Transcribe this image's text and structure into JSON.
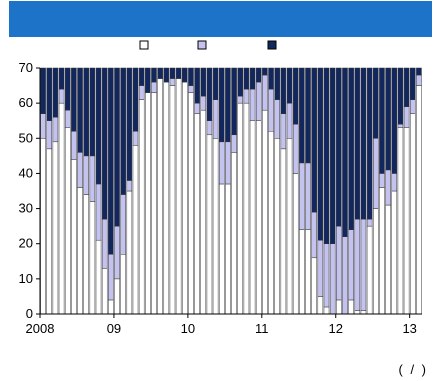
{
  "header": {
    "title": ""
  },
  "colors": {
    "white_series": "#ffffff",
    "light_series": "#c4c2ee",
    "dark_series": "#13275f",
    "title_bar": "#1d73c7"
  },
  "legend": [
    {
      "marker_color": "#ffffff",
      "label": ""
    },
    {
      "marker_color": "#c4c2ee",
      "label": ""
    },
    {
      "marker_color": "#13275f",
      "label": ""
    }
  ],
  "footnote": "( / )",
  "chart_data": {
    "type": "bar",
    "stacked": true,
    "ylim": [
      0,
      70
    ],
    "yticks": [
      0,
      10,
      20,
      30,
      40,
      50,
      60,
      70
    ],
    "xtick_labels": [
      "2008",
      "09",
      "10",
      "11",
      "12",
      "13"
    ],
    "xlabel": "",
    "ylabel": "",
    "grid": false,
    "legend_position": "top",
    "series": [
      {
        "values": [
          50,
          47,
          49,
          60,
          53,
          44,
          36,
          34,
          32,
          21,
          13,
          4,
          10,
          17,
          35,
          48,
          61,
          63,
          63,
          67,
          66,
          65,
          67,
          66,
          63,
          57,
          58,
          51,
          50,
          37,
          37,
          46,
          60,
          60,
          55,
          55,
          58,
          52,
          50,
          47,
          50,
          40,
          24,
          24,
          16,
          5,
          2,
          0,
          4,
          0,
          4,
          1,
          1,
          25,
          30,
          36,
          31,
          35,
          53,
          53,
          57,
          65
        ]
      },
      {
        "values": [
          7,
          8,
          7,
          4,
          5,
          8,
          10,
          11,
          13,
          16,
          14,
          13,
          15,
          17,
          3,
          4,
          4,
          0,
          3,
          0,
          0,
          2,
          0,
          0,
          2,
          3,
          4,
          4,
          11,
          12,
          12,
          5,
          2,
          4,
          9,
          11,
          10,
          12,
          11,
          10,
          10,
          14,
          19,
          19,
          13,
          16,
          18,
          20,
          21,
          22,
          20,
          26,
          26,
          2,
          20,
          4,
          10,
          5,
          1,
          6,
          4,
          3
        ]
      },
      {
        "values": [
          13,
          15,
          14,
          6,
          12,
          18,
          24,
          25,
          25,
          33,
          43,
          53,
          45,
          36,
          32,
          18,
          5,
          7,
          4,
          3,
          4,
          3,
          3,
          4,
          5,
          10,
          8,
          15,
          9,
          21,
          21,
          19,
          8,
          6,
          6,
          4,
          2,
          6,
          9,
          13,
          10,
          16,
          27,
          27,
          41,
          49,
          50,
          50,
          45,
          48,
          46,
          43,
          43,
          43,
          20,
          30,
          29,
          30,
          16,
          11,
          9,
          2
        ]
      }
    ]
  }
}
